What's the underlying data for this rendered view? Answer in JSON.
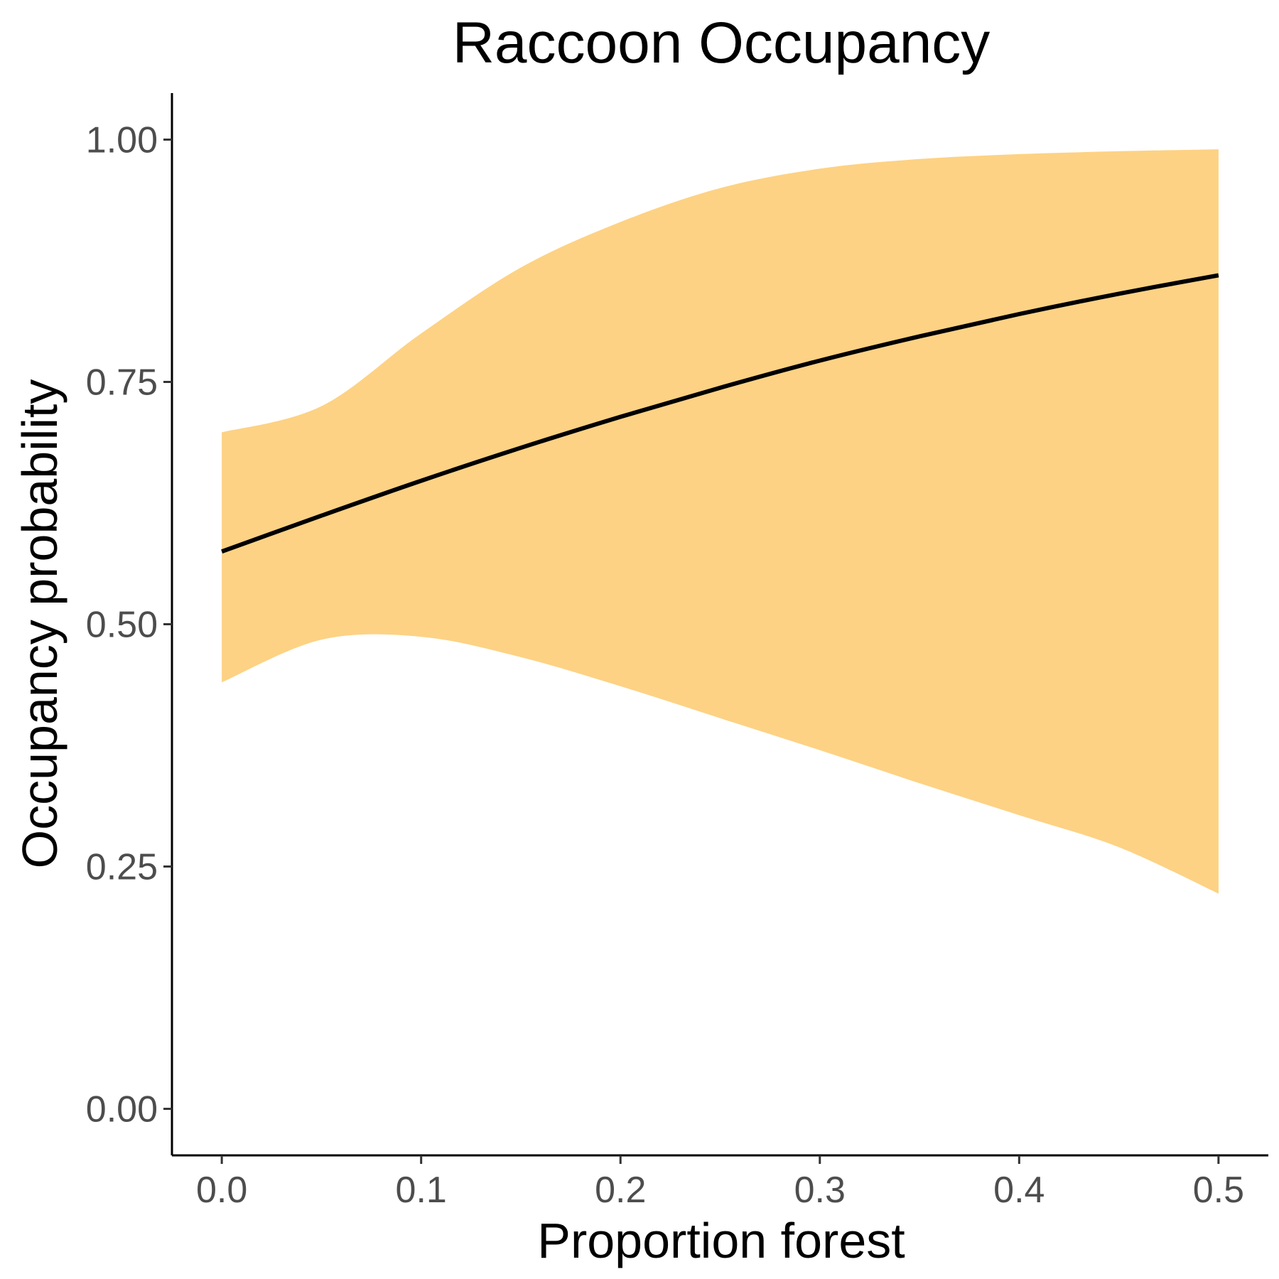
{
  "chart_data": {
    "type": "line",
    "title": "Raccoon Occupancy",
    "xlabel": "Proportion forest",
    "ylabel": "Occupancy probability",
    "xlim": [
      -0.025,
      0.525
    ],
    "ylim": [
      -0.048,
      1.048
    ],
    "x_ticks": [
      0.0,
      0.1,
      0.2,
      0.3,
      0.4,
      0.5
    ],
    "x_tick_labels": [
      "0.0",
      "0.1",
      "0.2",
      "0.3",
      "0.4",
      "0.5"
    ],
    "y_ticks": [
      0.0,
      0.25,
      0.5,
      0.75,
      1.0
    ],
    "y_tick_labels": [
      "0.00",
      "0.25",
      "0.50",
      "0.75",
      "1.00"
    ],
    "grid": false,
    "legend": "none",
    "series": [
      {
        "x": [
          0.0,
          0.05,
          0.1,
          0.15,
          0.2,
          0.25,
          0.3,
          0.35,
          0.4,
          0.45,
          0.5
        ],
        "values": [
          0.575,
          0.612,
          0.648,
          0.682,
          0.714,
          0.744,
          0.772,
          0.797,
          0.82,
          0.841,
          0.86
        ],
        "lower": [
          0.44,
          0.484,
          0.487,
          0.466,
          0.436,
          0.403,
          0.37,
          0.336,
          0.303,
          0.27,
          0.222
        ],
        "upper": [
          0.698,
          0.725,
          0.8,
          0.868,
          0.915,
          0.95,
          0.97,
          0.98,
          0.985,
          0.988,
          0.99
        ]
      }
    ],
    "colors": {
      "line": "#000000",
      "ribbon": "#FDD284"
    }
  }
}
